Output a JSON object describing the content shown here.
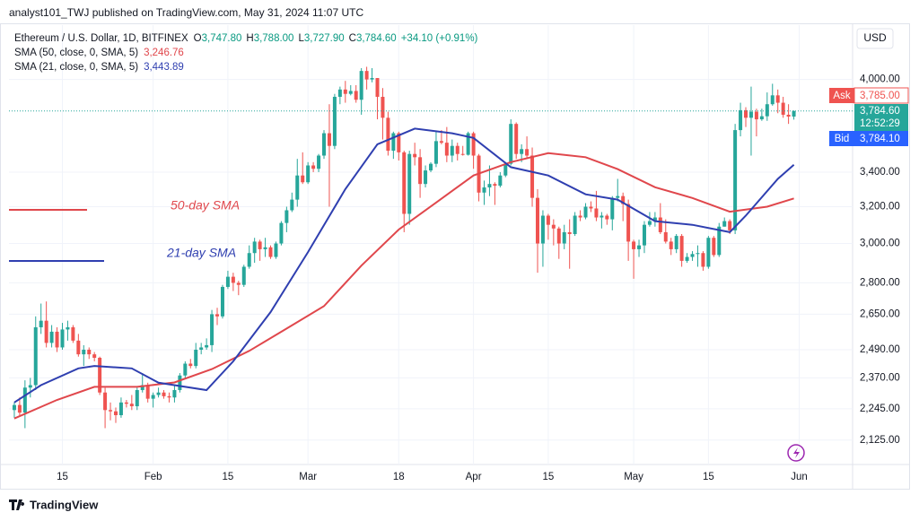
{
  "header": {
    "byline": "analyst101_TWJ published on TradingView.com, May 31, 2024 11:07 UTC"
  },
  "legend": {
    "symbol": "Ethereum / U.S. Dollar, 1D, BITFINEX",
    "ohlc": [
      {
        "label": "O",
        "value": "3,747.80"
      },
      {
        "label": "H",
        "value": "3,788.00"
      },
      {
        "label": "L",
        "value": "3,727.90"
      },
      {
        "label": "C",
        "value": "3,784.60"
      }
    ],
    "change": "+34.10 (+0.91%)",
    "indicators": [
      {
        "name": "SMA (50, close, 0, SMA, 5)",
        "value": "3,246.76"
      },
      {
        "name": "SMA (21, close, 0, SMA, 5)",
        "value": "3,443.89"
      }
    ]
  },
  "price_scale": {
    "currency": "USD",
    "ask_label": "Ask",
    "ask": "3,785.00",
    "last": "3,784.60",
    "countdown": "12:52:29",
    "bid_label": "Bid",
    "bid": "3,784.10"
  },
  "footer": {
    "brand": "TradingView"
  },
  "chart_data": {
    "type": "candlestick",
    "log": true,
    "grid": true,
    "up_color": "#26a69a",
    "down_color": "#ef5350",
    "annotations": [
      {
        "text": "50-day SMA",
        "color": "#e0474c"
      },
      {
        "text": "21-day SMA",
        "color": "#2f3fb0"
      }
    ],
    "xlim": [
      "2024-01-05",
      "2024-06-11"
    ],
    "xticks": [
      {
        "value": "2024-01-15",
        "label": "15"
      },
      {
        "value": "2024-02-01",
        "label": "Feb"
      },
      {
        "value": "2024-02-15",
        "label": "15"
      },
      {
        "value": "2024-03-01",
        "label": "Mar"
      },
      {
        "value": "2024-03-18",
        "label": "18"
      },
      {
        "value": "2024-04-01",
        "label": "Apr"
      },
      {
        "value": "2024-04-15",
        "label": "15"
      },
      {
        "value": "2024-05-01",
        "label": "May"
      },
      {
        "value": "2024-05-15",
        "label": "15"
      },
      {
        "value": "2024-06-01",
        "label": "Jun"
      }
    ],
    "ylim": [
      2036,
      4400
    ],
    "yticks": [
      {
        "value": 2125,
        "label": "2,125.00"
      },
      {
        "value": 2245,
        "label": "2,245.00"
      },
      {
        "value": 2370,
        "label": "2,370.00"
      },
      {
        "value": 2490,
        "label": "2,490.00"
      },
      {
        "value": 2650,
        "label": "2,650.00"
      },
      {
        "value": 2800,
        "label": "2,800.00"
      },
      {
        "value": 3000,
        "label": "3,000.00"
      },
      {
        "value": 3200,
        "label": "3,200.00"
      },
      {
        "value": 3400,
        "label": "3,400.00"
      },
      {
        "value": 4000,
        "label": "4,000.00"
      }
    ],
    "x": [
      "2024-01-06",
      "2024-01-07",
      "2024-01-08",
      "2024-01-09",
      "2024-01-10",
      "2024-01-11",
      "2024-01-12",
      "2024-01-13",
      "2024-01-14",
      "2024-01-15",
      "2024-01-16",
      "2024-01-17",
      "2024-01-18",
      "2024-01-19",
      "2024-01-20",
      "2024-01-21",
      "2024-01-22",
      "2024-01-23",
      "2024-01-24",
      "2024-01-25",
      "2024-01-26",
      "2024-01-27",
      "2024-01-28",
      "2024-01-29",
      "2024-01-30",
      "2024-01-31",
      "2024-02-01",
      "2024-02-02",
      "2024-02-03",
      "2024-02-04",
      "2024-02-05",
      "2024-02-06",
      "2024-02-07",
      "2024-02-08",
      "2024-02-09",
      "2024-02-10",
      "2024-02-11",
      "2024-02-12",
      "2024-02-13",
      "2024-02-14",
      "2024-02-15",
      "2024-02-16",
      "2024-02-17",
      "2024-02-18",
      "2024-02-19",
      "2024-02-20",
      "2024-02-21",
      "2024-02-22",
      "2024-02-23",
      "2024-02-24",
      "2024-02-25",
      "2024-02-26",
      "2024-02-27",
      "2024-02-28",
      "2024-02-29",
      "2024-03-01",
      "2024-03-02",
      "2024-03-03",
      "2024-03-04",
      "2024-03-05",
      "2024-03-06",
      "2024-03-07",
      "2024-03-08",
      "2024-03-09",
      "2024-03-10",
      "2024-03-11",
      "2024-03-12",
      "2024-03-13",
      "2024-03-14",
      "2024-03-15",
      "2024-03-16",
      "2024-03-17",
      "2024-03-18",
      "2024-03-19",
      "2024-03-20",
      "2024-03-21",
      "2024-03-22",
      "2024-03-23",
      "2024-03-24",
      "2024-03-25",
      "2024-03-26",
      "2024-03-27",
      "2024-03-28",
      "2024-03-29",
      "2024-03-30",
      "2024-03-31",
      "2024-04-01",
      "2024-04-02",
      "2024-04-03",
      "2024-04-04",
      "2024-04-05",
      "2024-04-06",
      "2024-04-07",
      "2024-04-08",
      "2024-04-09",
      "2024-04-10",
      "2024-04-11",
      "2024-04-12",
      "2024-04-13",
      "2024-04-14",
      "2024-04-15",
      "2024-04-16",
      "2024-04-17",
      "2024-04-18",
      "2024-04-19",
      "2024-04-20",
      "2024-04-21",
      "2024-04-22",
      "2024-04-23",
      "2024-04-24",
      "2024-04-25",
      "2024-04-26",
      "2024-04-27",
      "2024-04-28",
      "2024-04-29",
      "2024-04-30",
      "2024-05-01",
      "2024-05-02",
      "2024-05-03",
      "2024-05-04",
      "2024-05-05",
      "2024-05-06",
      "2024-05-07",
      "2024-05-08",
      "2024-05-09",
      "2024-05-10",
      "2024-05-11",
      "2024-05-12",
      "2024-05-13",
      "2024-05-14",
      "2024-05-15",
      "2024-05-16",
      "2024-05-17",
      "2024-05-18",
      "2024-05-19",
      "2024-05-20",
      "2024-05-21",
      "2024-05-22",
      "2024-05-23",
      "2024-05-24",
      "2024-05-25",
      "2024-05-26",
      "2024-05-27",
      "2024-05-28",
      "2024-05-29",
      "2024-05-30",
      "2024-05-31"
    ],
    "ohlc": [
      [
        2240,
        2270,
        2210,
        2260
      ],
      [
        2260,
        2290,
        2220,
        2230
      ],
      [
        2230,
        2360,
        2170,
        2330
      ],
      [
        2330,
        2370,
        2290,
        2340
      ],
      [
        2340,
        2640,
        2320,
        2590
      ],
      [
        2590,
        2700,
        2560,
        2620
      ],
      [
        2620,
        2710,
        2500,
        2520
      ],
      [
        2520,
        2600,
        2500,
        2570
      ],
      [
        2570,
        2590,
        2480,
        2500
      ],
      [
        2500,
        2610,
        2490,
        2580
      ],
      [
        2580,
        2620,
        2530,
        2590
      ],
      [
        2590,
        2600,
        2520,
        2530
      ],
      [
        2530,
        2560,
        2460,
        2470
      ],
      [
        2470,
        2510,
        2420,
        2490
      ],
      [
        2490,
        2500,
        2450,
        2470
      ],
      [
        2470,
        2480,
        2440,
        2455
      ],
      [
        2455,
        2460,
        2300,
        2310
      ],
      [
        2310,
        2330,
        2170,
        2240
      ],
      [
        2240,
        2270,
        2200,
        2235
      ],
      [
        2235,
        2250,
        2190,
        2220
      ],
      [
        2220,
        2290,
        2210,
        2270
      ],
      [
        2270,
        2280,
        2250,
        2265
      ],
      [
        2265,
        2300,
        2240,
        2255
      ],
      [
        2255,
        2330,
        2240,
        2320
      ],
      [
        2320,
        2390,
        2310,
        2340
      ],
      [
        2340,
        2350,
        2270,
        2285
      ],
      [
        2285,
        2310,
        2250,
        2300
      ],
      [
        2300,
        2330,
        2290,
        2310
      ],
      [
        2310,
        2320,
        2285,
        2295
      ],
      [
        2295,
        2310,
        2270,
        2290
      ],
      [
        2290,
        2340,
        2270,
        2320
      ],
      [
        2320,
        2390,
        2310,
        2380
      ],
      [
        2380,
        2440,
        2370,
        2430
      ],
      [
        2430,
        2450,
        2410,
        2420
      ],
      [
        2420,
        2520,
        2410,
        2490
      ],
      [
        2490,
        2520,
        2470,
        2500
      ],
      [
        2500,
        2540,
        2490,
        2510
      ],
      [
        2510,
        2670,
        2480,
        2650
      ],
      [
        2650,
        2680,
        2600,
        2640
      ],
      [
        2640,
        2790,
        2630,
        2780
      ],
      [
        2780,
        2860,
        2770,
        2830
      ],
      [
        2830,
        2850,
        2760,
        2800
      ],
      [
        2800,
        2810,
        2740,
        2790
      ],
      [
        2790,
        2890,
        2780,
        2880
      ],
      [
        2880,
        2990,
        2870,
        2950
      ],
      [
        2950,
        3030,
        2900,
        3010
      ],
      [
        3010,
        3020,
        2910,
        2970
      ],
      [
        2970,
        3030,
        2930,
        2980
      ],
      [
        2980,
        2990,
        2920,
        2930
      ],
      [
        2930,
        3010,
        2920,
        3000
      ],
      [
        3000,
        3120,
        2990,
        3110
      ],
      [
        3110,
        3200,
        3060,
        3180
      ],
      [
        3180,
        3280,
        3170,
        3240
      ],
      [
        3240,
        3480,
        3200,
        3380
      ],
      [
        3380,
        3520,
        3330,
        3340
      ],
      [
        3340,
        3460,
        3330,
        3440
      ],
      [
        3440,
        3460,
        3400,
        3420
      ],
      [
        3420,
        3510,
        3400,
        3500
      ],
      [
        3500,
        3660,
        3480,
        3640
      ],
      [
        3640,
        3830,
        3200,
        3560
      ],
      [
        3560,
        3900,
        3540,
        3880
      ],
      [
        3880,
        3950,
        3830,
        3930
      ],
      [
        3930,
        3990,
        3840,
        3900
      ],
      [
        3900,
        3960,
        3890,
        3920
      ],
      [
        3920,
        3960,
        3840,
        3860
      ],
      [
        3860,
        4080,
        3760,
        4060
      ],
      [
        4060,
        4090,
        3930,
        4000
      ],
      [
        4000,
        4080,
        3980,
        4010
      ],
      [
        4010,
        4010,
        3730,
        3880
      ],
      [
        3880,
        3940,
        3600,
        3740
      ],
      [
        3740,
        3780,
        3500,
        3530
      ],
      [
        3530,
        3650,
        3480,
        3640
      ],
      [
        3640,
        3650,
        3470,
        3520
      ],
      [
        3520,
        3530,
        3060,
        3160
      ],
      [
        3160,
        3530,
        3100,
        3510
      ],
      [
        3510,
        3580,
        3440,
        3490
      ],
      [
        3490,
        3540,
        3250,
        3330
      ],
      [
        3330,
        3440,
        3310,
        3410
      ],
      [
        3410,
        3460,
        3400,
        3450
      ],
      [
        3450,
        3650,
        3430,
        3590
      ],
      [
        3590,
        3660,
        3570,
        3580
      ],
      [
        3580,
        3680,
        3460,
        3500
      ],
      [
        3500,
        3600,
        3460,
        3560
      ],
      [
        3560,
        3580,
        3470,
        3510
      ],
      [
        3510,
        3560,
        3500,
        3505
      ],
      [
        3505,
        3650,
        3500,
        3640
      ],
      [
        3640,
        3650,
        3420,
        3500
      ],
      [
        3500,
        3510,
        3230,
        3280
      ],
      [
        3280,
        3350,
        3210,
        3310
      ],
      [
        3310,
        3440,
        3260,
        3330
      ],
      [
        3330,
        3340,
        3210,
        3320
      ],
      [
        3320,
        3400,
        3310,
        3380
      ],
      [
        3380,
        3460,
        3370,
        3450
      ],
      [
        3450,
        3730,
        3440,
        3700
      ],
      [
        3700,
        3710,
        3480,
        3510
      ],
      [
        3510,
        3570,
        3460,
        3540
      ],
      [
        3540,
        3620,
        3480,
        3500
      ],
      [
        3500,
        3550,
        3200,
        3250
      ],
      [
        3250,
        3300,
        2850,
        3000
      ],
      [
        3000,
        3180,
        2880,
        3150
      ],
      [
        3150,
        3160,
        3020,
        3100
      ],
      [
        3100,
        3130,
        2990,
        3080
      ],
      [
        3080,
        3090,
        2920,
        3000
      ],
      [
        3000,
        3100,
        2970,
        3060
      ],
      [
        3060,
        3130,
        2870,
        3050
      ],
      [
        3050,
        3170,
        3040,
        3150
      ],
      [
        3150,
        3180,
        3120,
        3140
      ],
      [
        3140,
        3220,
        3130,
        3200
      ],
      [
        3200,
        3230,
        3170,
        3190
      ],
      [
        3190,
        3290,
        3120,
        3140
      ],
      [
        3140,
        3170,
        3080,
        3150
      ],
      [
        3150,
        3160,
        3100,
        3130
      ],
      [
        3130,
        3260,
        3070,
        3250
      ],
      [
        3250,
        3360,
        3230,
        3260
      ],
      [
        3260,
        3280,
        3120,
        3215
      ],
      [
        3215,
        3240,
        2910,
        3010
      ],
      [
        3010,
        3020,
        2820,
        2970
      ],
      [
        2970,
        3020,
        2930,
        2990
      ],
      [
        2990,
        3120,
        2950,
        3100
      ],
      [
        3100,
        3170,
        3090,
        3120
      ],
      [
        3120,
        3170,
        3090,
        3140
      ],
      [
        3140,
        3220,
        3050,
        3060
      ],
      [
        3060,
        3130,
        3000,
        3010
      ],
      [
        3010,
        3030,
        2940,
        2970
      ],
      [
        2970,
        3050,
        2950,
        3040
      ],
      [
        3040,
        3050,
        2880,
        2910
      ],
      [
        2910,
        2950,
        2900,
        2930
      ],
      [
        2930,
        2960,
        2910,
        2945
      ],
      [
        2945,
        2990,
        2880,
        2950
      ],
      [
        2950,
        2960,
        2860,
        2880
      ],
      [
        2880,
        3040,
        2870,
        3030
      ],
      [
        3030,
        3040,
        2930,
        2940
      ],
      [
        2940,
        3110,
        2930,
        3090
      ],
      [
        3090,
        3140,
        3090,
        3120
      ],
      [
        3120,
        3130,
        3050,
        3070
      ],
      [
        3070,
        3700,
        3050,
        3660
      ],
      [
        3660,
        3840,
        3620,
        3790
      ],
      [
        3790,
        3810,
        3680,
        3740
      ],
      [
        3740,
        3950,
        3500,
        3780
      ],
      [
        3780,
        3800,
        3620,
        3730
      ],
      [
        3730,
        3800,
        3720,
        3750
      ],
      [
        3750,
        3910,
        3720,
        3830
      ],
      [
        3830,
        3970,
        3820,
        3890
      ],
      [
        3890,
        3930,
        3770,
        3840
      ],
      [
        3840,
        3880,
        3740,
        3760
      ],
      [
        3760,
        3830,
        3700,
        3747.8
      ],
      [
        3747.8,
        3788,
        3727.9,
        3784.6
      ]
    ],
    "series": [
      {
        "name": "SMA (50, close, 0, SMA, 5)",
        "color": "#e0474c",
        "x": [
          "2024-01-06",
          "2024-01-14",
          "2024-01-21",
          "2024-01-29",
          "2024-02-05",
          "2024-02-12",
          "2024-02-19",
          "2024-02-26",
          "2024-03-04",
          "2024-03-11",
          "2024-03-18",
          "2024-03-25",
          "2024-04-01",
          "2024-04-08",
          "2024-04-15",
          "2024-04-22",
          "2024-04-28",
          "2024-05-05",
          "2024-05-12",
          "2024-05-19",
          "2024-05-26",
          "2024-05-31"
        ],
        "values": [
          2207,
          2280,
          2333,
          2333,
          2351,
          2407,
          2485,
          2584,
          2688,
          2886,
          3074,
          3223,
          3380,
          3460,
          3515,
          3490,
          3418,
          3311,
          3249,
          3172,
          3200,
          3246.76
        ]
      },
      {
        "name": "SMA (21, close, 0, SMA, 5)",
        "color": "#2f3fb0",
        "x": [
          "2024-01-06",
          "2024-01-11",
          "2024-01-18",
          "2024-01-21",
          "2024-01-28",
          "2024-02-02",
          "2024-02-11",
          "2024-02-16",
          "2024-02-23",
          "2024-03-01",
          "2024-03-08",
          "2024-03-14",
          "2024-03-21",
          "2024-03-28",
          "2024-04-01",
          "2024-04-08",
          "2024-04-15",
          "2024-04-22",
          "2024-04-28",
          "2024-05-05",
          "2024-05-12",
          "2024-05-19",
          "2024-05-22",
          "2024-05-28",
          "2024-05-31"
        ],
        "values": [
          2270,
          2340,
          2410,
          2420,
          2410,
          2350,
          2320,
          2440,
          2660,
          2955,
          3300,
          3570,
          3670,
          3640,
          3610,
          3430,
          3380,
          3270,
          3240,
          3120,
          3100,
          3060,
          3150,
          3360,
          3443.89
        ]
      }
    ]
  }
}
